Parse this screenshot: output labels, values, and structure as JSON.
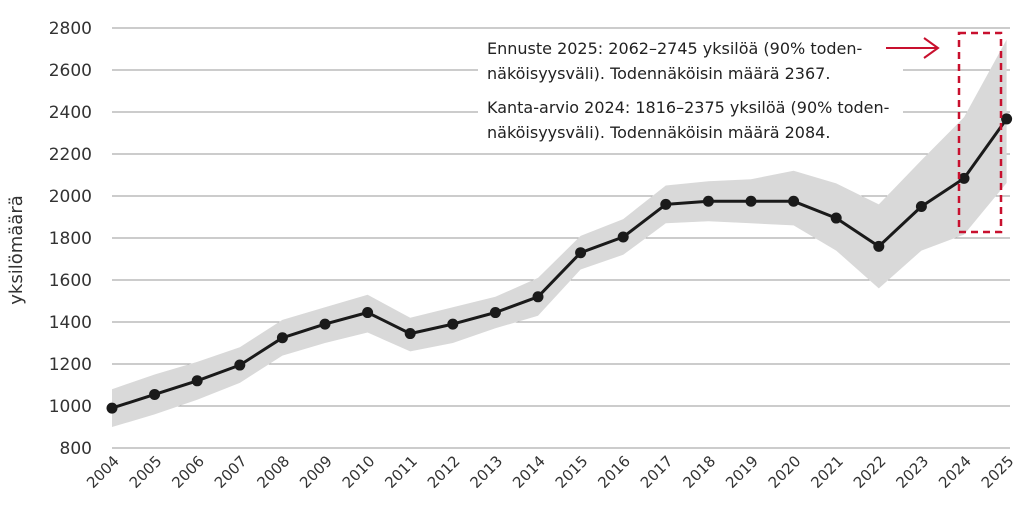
{
  "chart_data": {
    "type": "line",
    "title": "",
    "xlabel": "",
    "ylabel": "yksilömäärä",
    "ylim": [
      800,
      2800
    ],
    "yticks": [
      800,
      1000,
      1200,
      1400,
      1600,
      1800,
      2000,
      2200,
      2400,
      2600,
      2800
    ],
    "grid": "horizontal",
    "x": [
      "2004",
      "2005",
      "2006",
      "2007",
      "2008",
      "2009",
      "2010",
      "2011",
      "2012",
      "2013",
      "2014",
      "2015",
      "2016",
      "2017",
      "2018",
      "2019",
      "2020",
      "2021",
      "2022",
      "2023",
      "2024",
      "2025"
    ],
    "series": [
      {
        "values": [
          990,
          1055,
          1120,
          1195,
          1325,
          1390,
          1445,
          1345,
          1390,
          1445,
          1520,
          1730,
          1805,
          1960,
          1975,
          1975,
          1975,
          1895,
          1760,
          1950,
          2084,
          2367
        ],
        "color": "#1a1a1a"
      }
    ],
    "band": {
      "lower": [
        900,
        960,
        1030,
        1110,
        1240,
        1300,
        1350,
        1260,
        1300,
        1370,
        1430,
        1650,
        1720,
        1870,
        1880,
        1870,
        1860,
        1740,
        1560,
        1740,
        1816,
        2062
      ],
      "upper": [
        1080,
        1150,
        1210,
        1280,
        1410,
        1470,
        1530,
        1420,
        1470,
        1520,
        1610,
        1810,
        1890,
        2050,
        2070,
        2080,
        2120,
        2060,
        1960,
        2170,
        2375,
        2745
      ],
      "color": "#d9d9d9"
    },
    "annotations": {
      "forecast_line1": "Ennuste 2025: 2062–2745 yksilöä (90% toden-",
      "forecast_line2": "näköisyysväli). Todennäköisin määrä 2367.",
      "estimate_line1": "Kanta-arvio 2024: 1816–2375 yksilöä (90% toden-",
      "estimate_line2": "näköisyysväli). Todennäköisin määrä 2084.",
      "arrow_color": "#c8102e",
      "highlight_box_color": "#c8102e"
    }
  }
}
